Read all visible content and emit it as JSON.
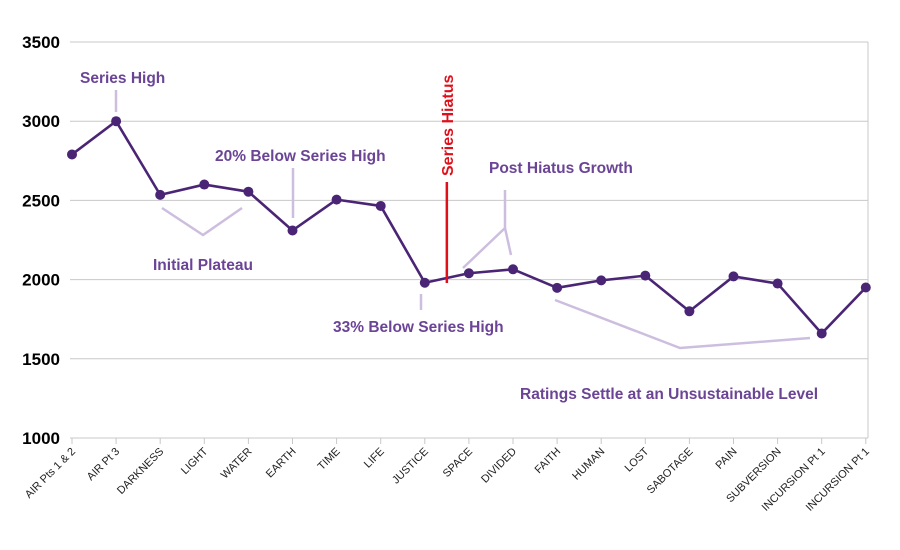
{
  "chart_data": {
    "type": "line",
    "title": "",
    "xlabel": "",
    "ylabel": "",
    "ylim": [
      1000,
      3500
    ],
    "yticks": [
      1000,
      1500,
      2000,
      2500,
      3000,
      3500
    ],
    "grid": true,
    "categories": [
      "AIR Pts 1 & 2",
      "AIR Pt 3",
      "DARKNESS",
      "LIGHT",
      "WATER",
      "EARTH",
      "TIME",
      "LIFE",
      "JUSTICE",
      "SPACE",
      "DIVIDED",
      "FAITH",
      "HUMAN",
      "LOST",
      "SABOTAGE",
      "PAIN",
      "SUBVERSION",
      "INCURSION Pt 1",
      "INCURSION Pt 1"
    ],
    "series": [
      {
        "values": [
          2790,
          3000,
          2535,
          2600,
          2555,
          2310,
          2505,
          2465,
          1980,
          2040,
          2065,
          1948,
          1995,
          2025,
          1800,
          2020,
          1975,
          1660,
          1950
        ],
        "color": "#4b2575"
      }
    ],
    "hiatus": {
      "label": "Series Hiatus",
      "after_index": 8,
      "color": "#e0101a"
    },
    "annotations": [
      {
        "text": "Series High"
      },
      {
        "text": "20% Below Series High"
      },
      {
        "text": "Initial Plateau"
      },
      {
        "text": "Post Hiatus Growth"
      },
      {
        "text": "33% Below Series High"
      },
      {
        "text": "Ratings Settle at an Unsustainable Level"
      }
    ],
    "annotation_color": "#6b4496",
    "leader_color": "#cdbedf"
  }
}
